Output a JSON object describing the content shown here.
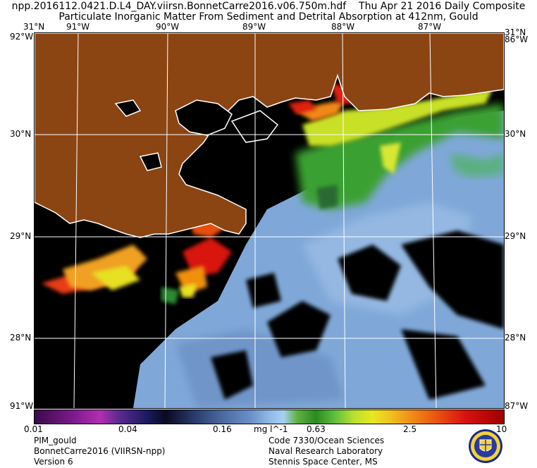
{
  "header": {
    "filename": "npp.2016112.0421.D.L4_DAY.viirsn.BonnetCarre2016.v06.750m.hdf",
    "date": "Thu Apr 21 2016 Daily Composite",
    "product": "Particulate Inorganic Matter From Sediment and Detrital Absorption at 412nm, Gould"
  },
  "map": {
    "lon_labels": [
      "91°W",
      "90°W",
      "89°W",
      "88°W",
      "87°W"
    ],
    "lat_labels": [
      "30°N",
      "29°N",
      "28°N"
    ],
    "corner_top_left": "31°N",
    "corner_left_w": "92°W",
    "corner_top_right": "31°N",
    "corner_right_w": "86°W",
    "corner_bottom_left": "91°W",
    "corner_bottom_right": "87°W",
    "colors": {
      "land": "#8b4513",
      "nodata": "#000000",
      "ocean": "#7fa8d8",
      "coast": "#ffffff"
    }
  },
  "colorbar": {
    "ticks": [
      "0.01",
      "0.04",
      "0.16",
      "0.63",
      "2.5",
      "10"
    ],
    "units": "mg l^-1"
  },
  "footer": {
    "left": [
      "PIM_gould",
      "BonnetCarre2016 (VIIRSN-npp)",
      "Version 6"
    ],
    "right": [
      "Code 7330/Ocean Sciences",
      "Naval Research Laboratory",
      "Stennis Space Center, MS"
    ]
  },
  "logo": {
    "name": "navy-seal"
  }
}
